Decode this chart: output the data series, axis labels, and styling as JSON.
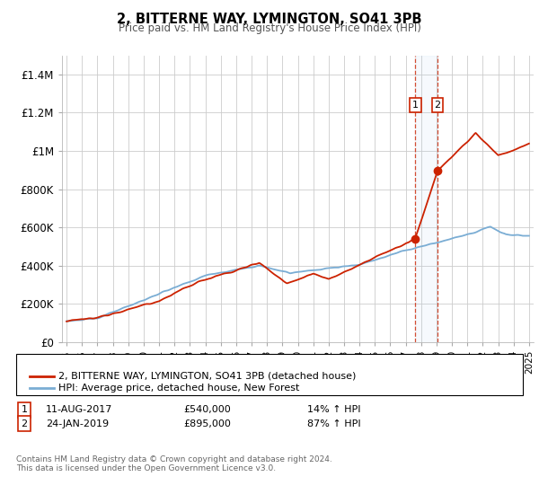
{
  "title": "2, BITTERNE WAY, LYMINGTON, SO41 3PB",
  "subtitle": "Price paid vs. HM Land Registry's House Price Index (HPI)",
  "ylim": [
    0,
    1500000
  ],
  "yticks": [
    0,
    200000,
    400000,
    600000,
    800000,
    1000000,
    1200000,
    1400000
  ],
  "ytick_labels": [
    "£0",
    "£200K",
    "£400K",
    "£600K",
    "£800K",
    "£1M",
    "£1.2M",
    "£1.4M"
  ],
  "hpi_color": "#7aadd4",
  "price_color": "#cc2200",
  "marker1_date": 2017.62,
  "marker1_price": 540000,
  "marker1_label": "11-AUG-2017",
  "marker1_value": "£540,000",
  "marker1_note": "14% ↑ HPI",
  "marker2_date": 2019.07,
  "marker2_price": 895000,
  "marker2_label": "24-JAN-2019",
  "marker2_value": "£895,000",
  "marker2_note": "87% ↑ HPI",
  "legend_line1": "2, BITTERNE WAY, LYMINGTON, SO41 3PB (detached house)",
  "legend_line2": "HPI: Average price, detached house, New Forest",
  "footnote": "Contains HM Land Registry data © Crown copyright and database right 2024.\nThis data is licensed under the Open Government Licence v3.0."
}
